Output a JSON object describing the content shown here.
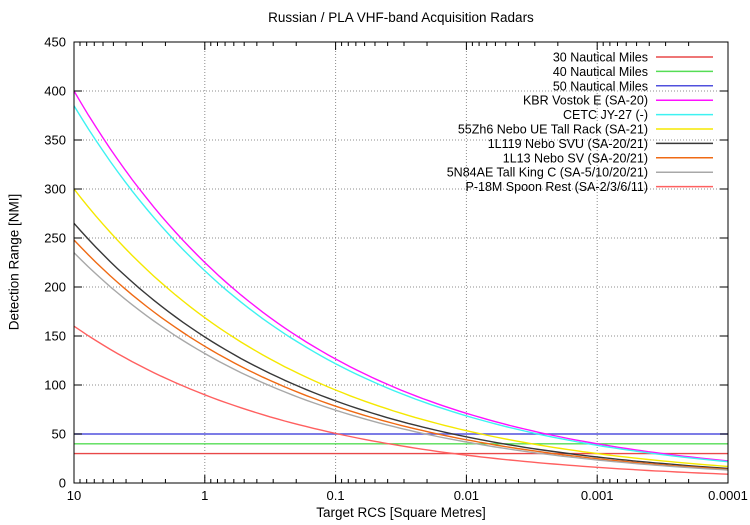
{
  "title": "Russian / PLA VHF-band Acquisition Radars",
  "chart_data": {
    "type": "line",
    "title": "Russian / PLA VHF-band Acquisition Radars",
    "xlabel": "Target RCS [Square Metres]",
    "ylabel": "Detection Range [NMI]",
    "x_scale": "log-reversed",
    "grid": true,
    "legend_position": "top-right",
    "ylim": [
      0,
      450
    ],
    "y_ticks": [
      0,
      50,
      100,
      150,
      200,
      250,
      300,
      350,
      400,
      450
    ],
    "x_ticks": [
      10,
      1,
      0.1,
      0.01,
      0.001,
      0.0001
    ],
    "x_tick_labels": [
      "10",
      "1",
      "0.1",
      "0.01",
      "0.001",
      "0.0001"
    ],
    "x": [
      10,
      1,
      0.1,
      0.01,
      0.001,
      0.0001
    ],
    "series": [
      {
        "name": "30 Nautical Miles",
        "color": "#e84848",
        "values": [
          30,
          30,
          30,
          30,
          30,
          30
        ]
      },
      {
        "name": "40 Nautical Miles",
        "color": "#55dd55",
        "values": [
          40,
          40,
          40,
          40,
          40,
          40
        ]
      },
      {
        "name": "50 Nautical Miles",
        "color": "#5050dd",
        "values": [
          50,
          50,
          50,
          50,
          50,
          50
        ]
      },
      {
        "name": "KBR Vostok E (SA-20)",
        "color": "#ff10ff",
        "values": [
          400,
          225.0,
          126.5,
          71.1,
          40.0,
          22.5
        ]
      },
      {
        "name": "CETC JY-27 (-)",
        "color": "#3df2f2",
        "values": [
          385,
          216.5,
          121.7,
          68.5,
          38.5,
          21.7
        ]
      },
      {
        "name": "55Zh6 Nebo UE Tall Rack (SA-21)",
        "color": "#f5e800",
        "values": [
          300,
          168.7,
          94.9,
          53.4,
          30.0,
          16.9
        ]
      },
      {
        "name": "1L119 Nebo SVU (SA-20/21)",
        "color": "#383838",
        "values": [
          265,
          149.0,
          83.8,
          47.1,
          26.5,
          14.9
        ]
      },
      {
        "name": "1L13 Nebo SV (SA-20/21)",
        "color": "#ef6a14",
        "values": [
          248,
          139.5,
          78.4,
          44.1,
          24.8,
          13.9
        ]
      },
      {
        "name": "5N84AE Tall King C (SA-5/10/20/21)",
        "color": "#a8a8a8",
        "values": [
          235,
          132.1,
          74.3,
          41.8,
          23.5,
          13.2
        ]
      },
      {
        "name": "P-18M Spoon Rest (SA-2/3/6/11)",
        "color": "#ff6060",
        "values": [
          160,
          90.0,
          50.6,
          28.4,
          16.0,
          9.0
        ]
      }
    ]
  }
}
